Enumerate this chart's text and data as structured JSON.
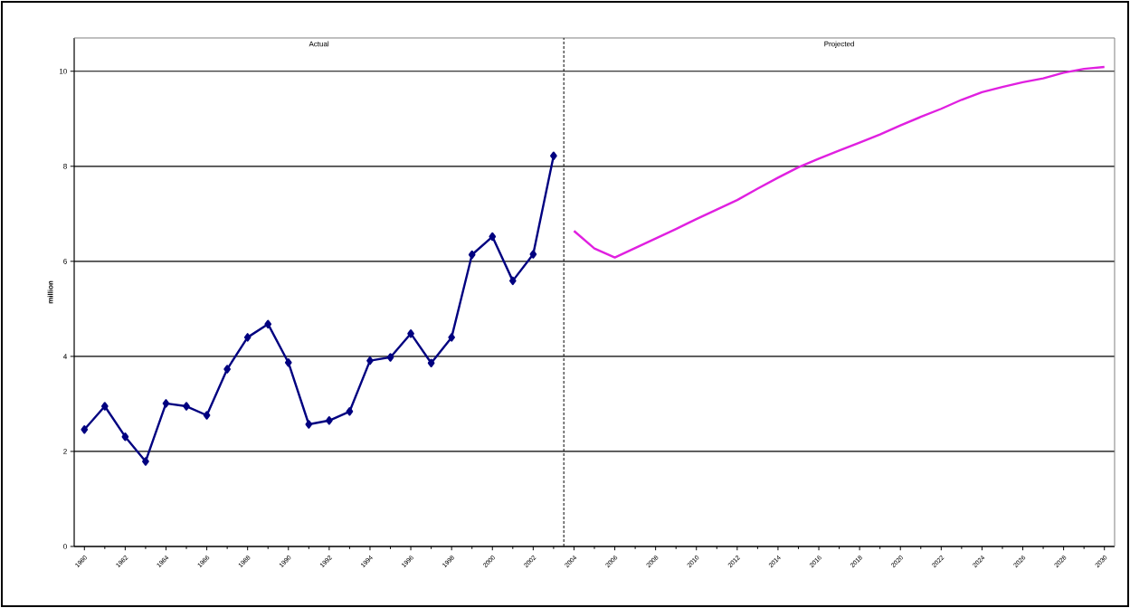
{
  "chart_data": {
    "type": "line",
    "ylabel": "million",
    "annotations": [
      "Actual",
      "Projected"
    ],
    "xlim": [
      1979.5,
      2030.5
    ],
    "xticks": [
      1980,
      1982,
      1984,
      1986,
      1988,
      1990,
      1992,
      1994,
      1996,
      1998,
      2000,
      2002,
      2004,
      2006,
      2008,
      2010,
      2012,
      2014,
      2016,
      2018,
      2020,
      2022,
      2024,
      2026,
      2028,
      2030
    ],
    "ylim": [
      0,
      10.7
    ],
    "yticks": [
      0,
      2,
      4,
      6,
      8,
      10
    ],
    "grid": "y",
    "ref_lines": [
      {
        "axis": "x",
        "value": 2003.5,
        "line_style": "dashed"
      }
    ],
    "series": [
      {
        "color": "#000080",
        "marker": "diamond",
        "x": [
          1980,
          1981,
          1982,
          1983,
          1984,
          1985,
          1986,
          1987,
          1988,
          1989,
          1990,
          1991,
          1992,
          1993,
          1994,
          1995,
          1996,
          1997,
          1998,
          1999,
          2000,
          2001,
          2002,
          2003
        ],
        "values": [
          2.46,
          2.95,
          2.31,
          1.79,
          3.01,
          2.95,
          2.76,
          3.73,
          4.4,
          4.68,
          3.87,
          2.57,
          2.65,
          2.84,
          3.91,
          3.98,
          4.48,
          3.86,
          4.4,
          6.14,
          6.52,
          5.59,
          6.15,
          8.22
        ]
      },
      {
        "color": "#e020e0",
        "marker": "none",
        "x": [
          2004,
          2005,
          2006,
          2007,
          2008,
          2009,
          2010,
          2011,
          2012,
          2013,
          2014,
          2015,
          2016,
          2017,
          2018,
          2019,
          2020,
          2021,
          2022,
          2023,
          2024,
          2025,
          2026,
          2027,
          2028,
          2029,
          2030
        ],
        "values": [
          6.64,
          6.27,
          6.08,
          6.28,
          6.48,
          6.68,
          6.89,
          7.09,
          7.29,
          7.53,
          7.76,
          7.98,
          8.16,
          8.33,
          8.5,
          8.67,
          8.86,
          9.04,
          9.21,
          9.4,
          9.56,
          9.67,
          9.77,
          9.85,
          9.97,
          10.05,
          10.09
        ]
      }
    ]
  }
}
